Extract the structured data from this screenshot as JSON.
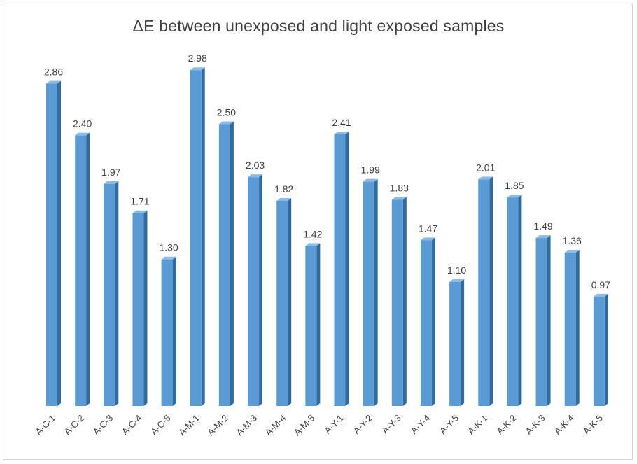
{
  "chart_data": {
    "type": "bar",
    "title": "ΔE between unexposed and light exposed samples",
    "xlabel": "",
    "ylabel": "",
    "categories": [
      "A-C-1",
      "A-C-2",
      "A-C-3",
      "A-C-4",
      "A-C-5",
      "A-M-1",
      "A-M-2",
      "A-M-3",
      "A-M-4",
      "A-M-5",
      "A-Y-1",
      "A-Y-2",
      "A-Y-3",
      "A-Y-4",
      "A-Y-5",
      "A-K-1",
      "A-K-2",
      "A-K-3",
      "A-K-4",
      "A-K-5"
    ],
    "values": [
      2.86,
      2.4,
      1.97,
      1.71,
      1.3,
      2.98,
      2.5,
      2.03,
      1.82,
      1.42,
      2.41,
      1.99,
      1.83,
      1.47,
      1.1,
      2.01,
      1.85,
      1.49,
      1.36,
      0.97
    ],
    "value_labels": [
      "2.86",
      "2.40",
      "1.97",
      "1.71",
      "1.30",
      "2.98",
      "2.50",
      "2.03",
      "1.82",
      "1.42",
      "2.41",
      "1.99",
      "1.83",
      "1.47",
      "1.10",
      "2.01",
      "1.85",
      "1.49",
      "1.36",
      "0.97"
    ],
    "ylim": [
      0,
      3
    ],
    "grid": false,
    "legend": "none",
    "bar_style": "3d",
    "colors": {
      "bar_front": "#5b9bd5",
      "bar_side": "#2f6aa0",
      "bar_top": "#8cbbe6",
      "text": "#404040",
      "border": "#d4d4d4"
    }
  }
}
